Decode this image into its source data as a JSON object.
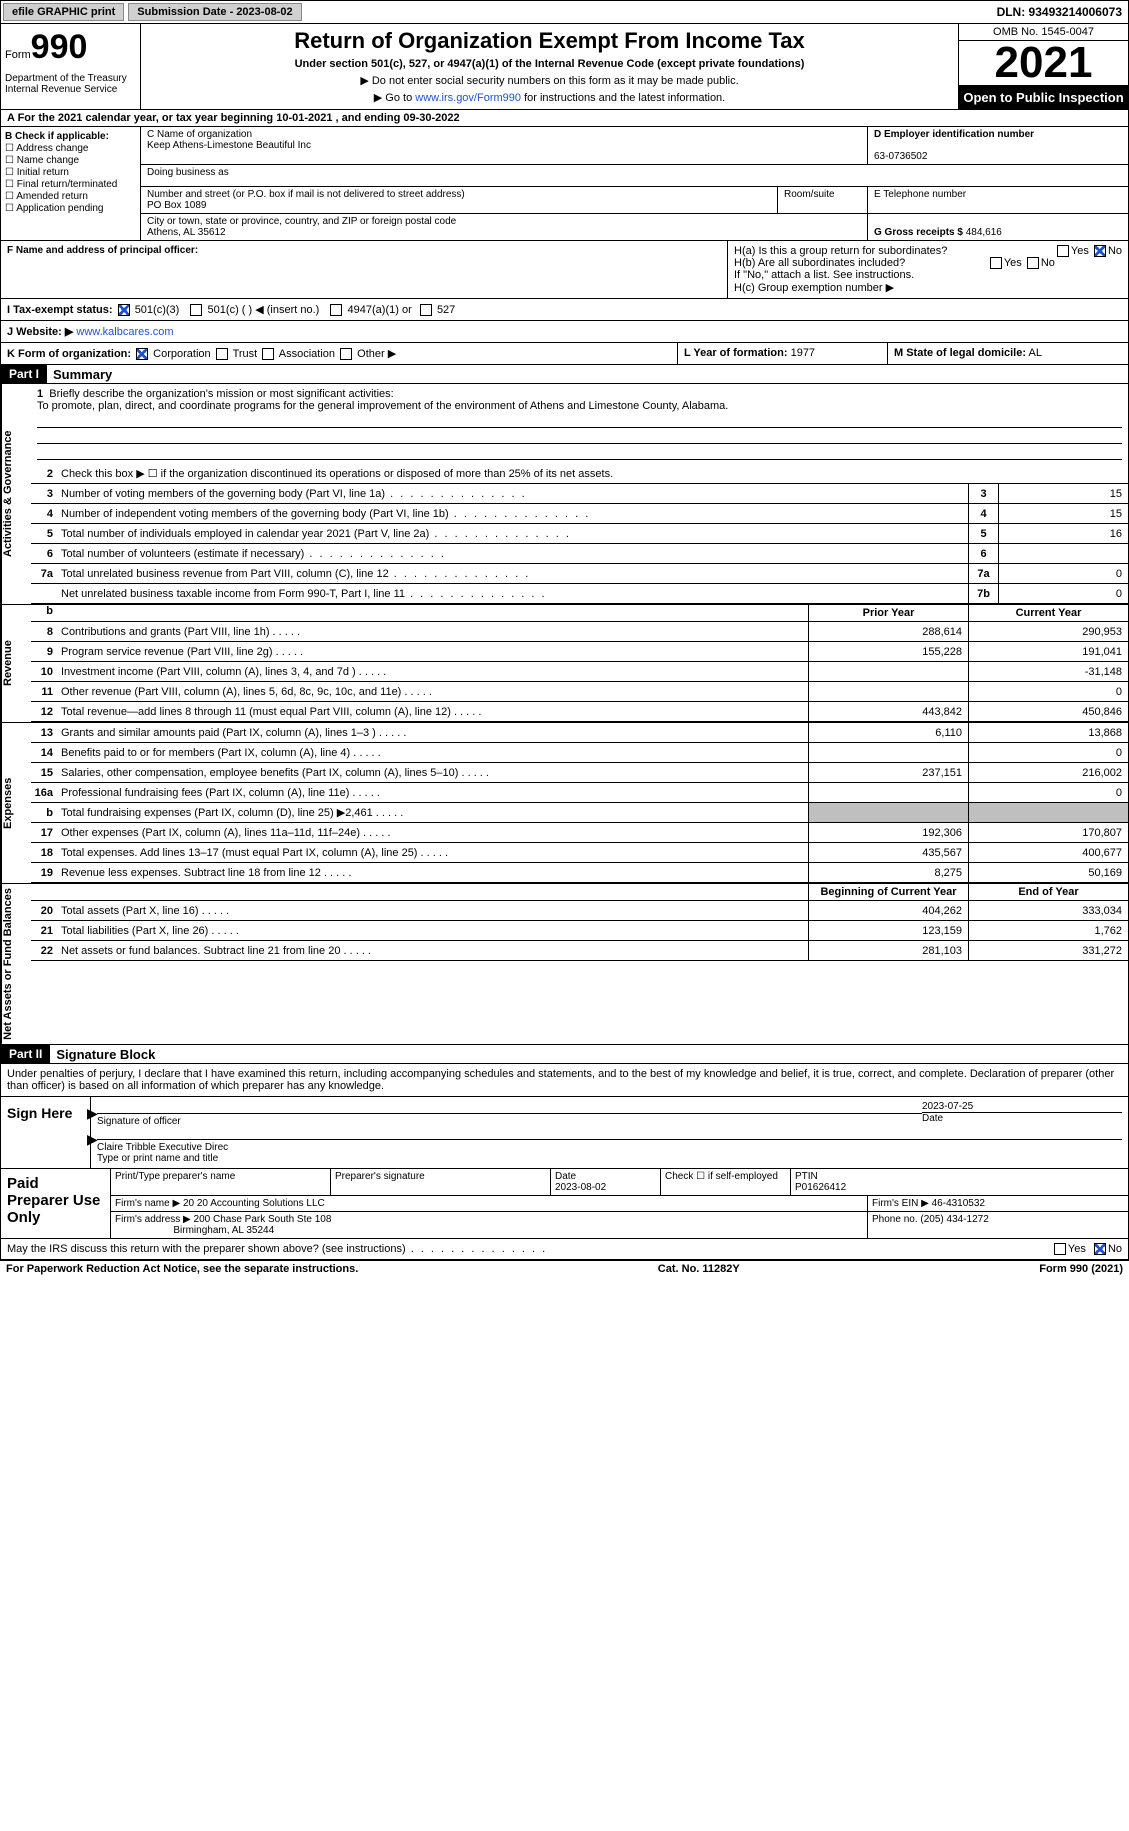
{
  "topbar": {
    "efile": "efile GRAPHIC print",
    "submission": "Submission Date - 2023-08-02",
    "dln": "DLN: 93493214006073"
  },
  "hdr": {
    "form_label": "Form",
    "form_num": "990",
    "dept": "Department of the Treasury Internal Revenue Service",
    "title": "Return of Organization Exempt From Income Tax",
    "sub": "Under section 501(c), 527, or 4947(a)(1) of the Internal Revenue Code (except private foundations)",
    "note1": "▶ Do not enter social security numbers on this form as it may be made public.",
    "note2_pre": "▶ Go to ",
    "note2_link": "www.irs.gov/Form990",
    "note2_post": " for instructions and the latest information.",
    "omb": "OMB No. 1545-0047",
    "year": "2021",
    "open": "Open to Public Inspection"
  },
  "rowA": {
    "pre": "A For the 2021 calendar year, or tax year beginning ",
    "begin": "10-01-2021",
    "mid": "  , and ending ",
    "end": "09-30-2022"
  },
  "B": {
    "label": "B Check if applicable:",
    "items": [
      "Address change",
      "Name change",
      "Initial return",
      "Final return/terminated",
      "Amended return",
      "Application pending"
    ]
  },
  "C": {
    "name_label": "C Name of organization",
    "name": "Keep Athens-Limestone Beautiful Inc",
    "dba": "Doing business as",
    "dba_val": "",
    "street_label": "Number and street (or P.O. box if mail is not delivered to street address)",
    "street": "PO Box 1089",
    "room_label": "Room/suite",
    "room": "",
    "city_label": "City or town, state or province, country, and ZIP or foreign postal code",
    "city": "Athens, AL  35612"
  },
  "D": {
    "label": "D Employer identification number",
    "val": "63-0736502"
  },
  "E": {
    "label": "E Telephone number",
    "val": ""
  },
  "G": {
    "label": "G Gross receipts $",
    "val": "484,616"
  },
  "F": {
    "label": "F Name and address of principal officer:",
    "val": ""
  },
  "H": {
    "a": "H(a)  Is this a group return for subordinates?",
    "b": "H(b)  Are all subordinates included?",
    "b_note": "If \"No,\" attach a list. See instructions.",
    "c": "H(c)  Group exemption number ▶"
  },
  "I": {
    "label": "I   Tax-exempt status:",
    "c3": "501(c)(3)",
    "c": "501(c) (  ) ◀ (insert no.)",
    "a1": "4947(a)(1) or",
    "s527": "527"
  },
  "J": {
    "label": "J   Website: ▶",
    "val": " www.kalbcares.com"
  },
  "K": {
    "label": "K Form of organization:",
    "corp": "Corporation",
    "trust": "Trust",
    "assoc": "Association",
    "other": "Other ▶"
  },
  "L": {
    "label": "L Year of formation:",
    "val": "1977"
  },
  "M": {
    "label": "M State of legal domicile:",
    "val": "AL"
  },
  "part1": {
    "label": "Part I",
    "title": "Summary"
  },
  "vlabels": {
    "ag": "Activities & Governance",
    "rev": "Revenue",
    "exp": "Expenses",
    "net": "Net Assets or Fund Balances"
  },
  "s1": {
    "label": "Briefly describe the organization's mission or most significant activities:",
    "mission": "To promote, plan, direct, and coordinate programs for the general improvement of the environment of Athens and Limestone County, Alabama."
  },
  "s2": "Check this box ▶ ☐ if the organization discontinued its operations or disposed of more than 25% of its net assets.",
  "lines": {
    "3": {
      "t": "Number of voting members of the governing body (Part VI, line 1a)",
      "v": "15"
    },
    "4": {
      "t": "Number of independent voting members of the governing body (Part VI, line 1b)",
      "v": "15"
    },
    "5": {
      "t": "Total number of individuals employed in calendar year 2021 (Part V, line 2a)",
      "v": "16"
    },
    "6": {
      "t": "Total number of volunteers (estimate if necessary)",
      "v": ""
    },
    "7a": {
      "t": "Total unrelated business revenue from Part VIII, column (C), line 12",
      "v": "0"
    },
    "7b": {
      "t": "Net unrelated business taxable income from Form 990-T, Part I, line 11",
      "v": "0"
    }
  },
  "cols": {
    "prior": "Prior Year",
    "curr": "Current Year",
    "boy": "Beginning of Current Year",
    "eoy": "End of Year"
  },
  "rev": [
    {
      "n": "8",
      "t": "Contributions and grants (Part VIII, line 1h)",
      "p": "288,614",
      "c": "290,953"
    },
    {
      "n": "9",
      "t": "Program service revenue (Part VIII, line 2g)",
      "p": "155,228",
      "c": "191,041"
    },
    {
      "n": "10",
      "t": "Investment income (Part VIII, column (A), lines 3, 4, and 7d )",
      "p": "",
      "c": "-31,148"
    },
    {
      "n": "11",
      "t": "Other revenue (Part VIII, column (A), lines 5, 6d, 8c, 9c, 10c, and 11e)",
      "p": "",
      "c": "0"
    },
    {
      "n": "12",
      "t": "Total revenue—add lines 8 through 11 (must equal Part VIII, column (A), line 12)",
      "p": "443,842",
      "c": "450,846"
    }
  ],
  "exp": [
    {
      "n": "13",
      "t": "Grants and similar amounts paid (Part IX, column (A), lines 1–3 )",
      "p": "6,110",
      "c": "13,868"
    },
    {
      "n": "14",
      "t": "Benefits paid to or for members (Part IX, column (A), line 4)",
      "p": "",
      "c": "0"
    },
    {
      "n": "15",
      "t": "Salaries, other compensation, employee benefits (Part IX, column (A), lines 5–10)",
      "p": "237,151",
      "c": "216,002"
    },
    {
      "n": "16a",
      "t": "Professional fundraising fees (Part IX, column (A), line 11e)",
      "p": "",
      "c": "0"
    },
    {
      "n": "b",
      "t": "Total fundraising expenses (Part IX, column (D), line 25) ▶2,461",
      "p": "shade",
      "c": "shade"
    },
    {
      "n": "17",
      "t": "Other expenses (Part IX, column (A), lines 11a–11d, 11f–24e)",
      "p": "192,306",
      "c": "170,807"
    },
    {
      "n": "18",
      "t": "Total expenses. Add lines 13–17 (must equal Part IX, column (A), line 25)",
      "p": "435,567",
      "c": "400,677"
    },
    {
      "n": "19",
      "t": "Revenue less expenses. Subtract line 18 from line 12",
      "p": "8,275",
      "c": "50,169"
    }
  ],
  "net": [
    {
      "n": "20",
      "t": "Total assets (Part X, line 16)",
      "p": "404,262",
      "c": "333,034"
    },
    {
      "n": "21",
      "t": "Total liabilities (Part X, line 26)",
      "p": "123,159",
      "c": "1,762"
    },
    {
      "n": "22",
      "t": "Net assets or fund balances. Subtract line 21 from line 20",
      "p": "281,103",
      "c": "331,272"
    }
  ],
  "part2": {
    "label": "Part II",
    "title": "Signature Block"
  },
  "perjury": "Under penalties of perjury, I declare that I have examined this return, including accompanying schedules and statements, and to the best of my knowledge and belief, it is true, correct, and complete. Declaration of preparer (other than officer) is based on all information of which preparer has any knowledge.",
  "sign": {
    "label": "Sign Here",
    "sig_of": "Signature of officer",
    "date": "2023-07-25",
    "date_label": "Date",
    "name": "Claire Tribble  Executive Direc",
    "name_label": "Type or print name and title"
  },
  "paid": {
    "label": "Paid Preparer Use Only",
    "r1": {
      "c1": "Print/Type preparer's name",
      "c2": "Preparer's signature",
      "c3_l": "Date",
      "c3_v": "2023-08-02",
      "c4": "Check ☐ if self-employed",
      "c5_l": "PTIN",
      "c5_v": "P01626412"
    },
    "r2": {
      "c1": "Firm's name    ▶",
      "c1v": "20 20 Accounting Solutions LLC",
      "c2": "Firm's EIN ▶",
      "c2v": "46-4310532"
    },
    "r3": {
      "c1": "Firm's address ▶",
      "c1v": "200 Chase Park South Ste 108",
      "c1v2": "Birmingham, AL  35244",
      "c2": "Phone no.",
      "c2v": "(205) 434-1272"
    }
  },
  "discuss": "May the IRS discuss this return with the preparer shown above? (see instructions)",
  "footer": {
    "l": "For Paperwork Reduction Act Notice, see the separate instructions.",
    "m": "Cat. No. 11282Y",
    "r": "Form 990 (2021)"
  }
}
